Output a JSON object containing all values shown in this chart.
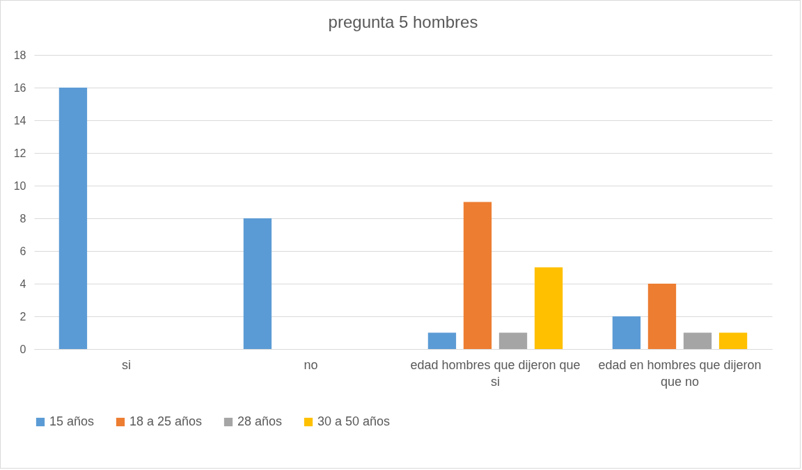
{
  "chart_data": {
    "type": "bar",
    "title": "pregunta 5 hombres",
    "categories": [
      "si",
      "no",
      "edad hombres que dijeron que si",
      "edad en hombres que dijeron que no"
    ],
    "series": [
      {
        "name": "15 años",
        "color": "#5b9bd5",
        "values": [
          16,
          8,
          1,
          2
        ]
      },
      {
        "name": "18 a 25 años",
        "color": "#ed7d31",
        "values": [
          0,
          0,
          9,
          4
        ]
      },
      {
        "name": "28 años",
        "color": "#a5a5a5",
        "values": [
          0,
          0,
          1,
          1
        ]
      },
      {
        "name": "30 a 50 años",
        "color": "#ffc000",
        "values": [
          0,
          0,
          5,
          1
        ]
      }
    ],
    "ylim": [
      0,
      18
    ],
    "yticks": [
      0,
      2,
      4,
      6,
      8,
      10,
      12,
      14,
      16,
      18
    ],
    "grid": "y",
    "legend": "bottom"
  }
}
